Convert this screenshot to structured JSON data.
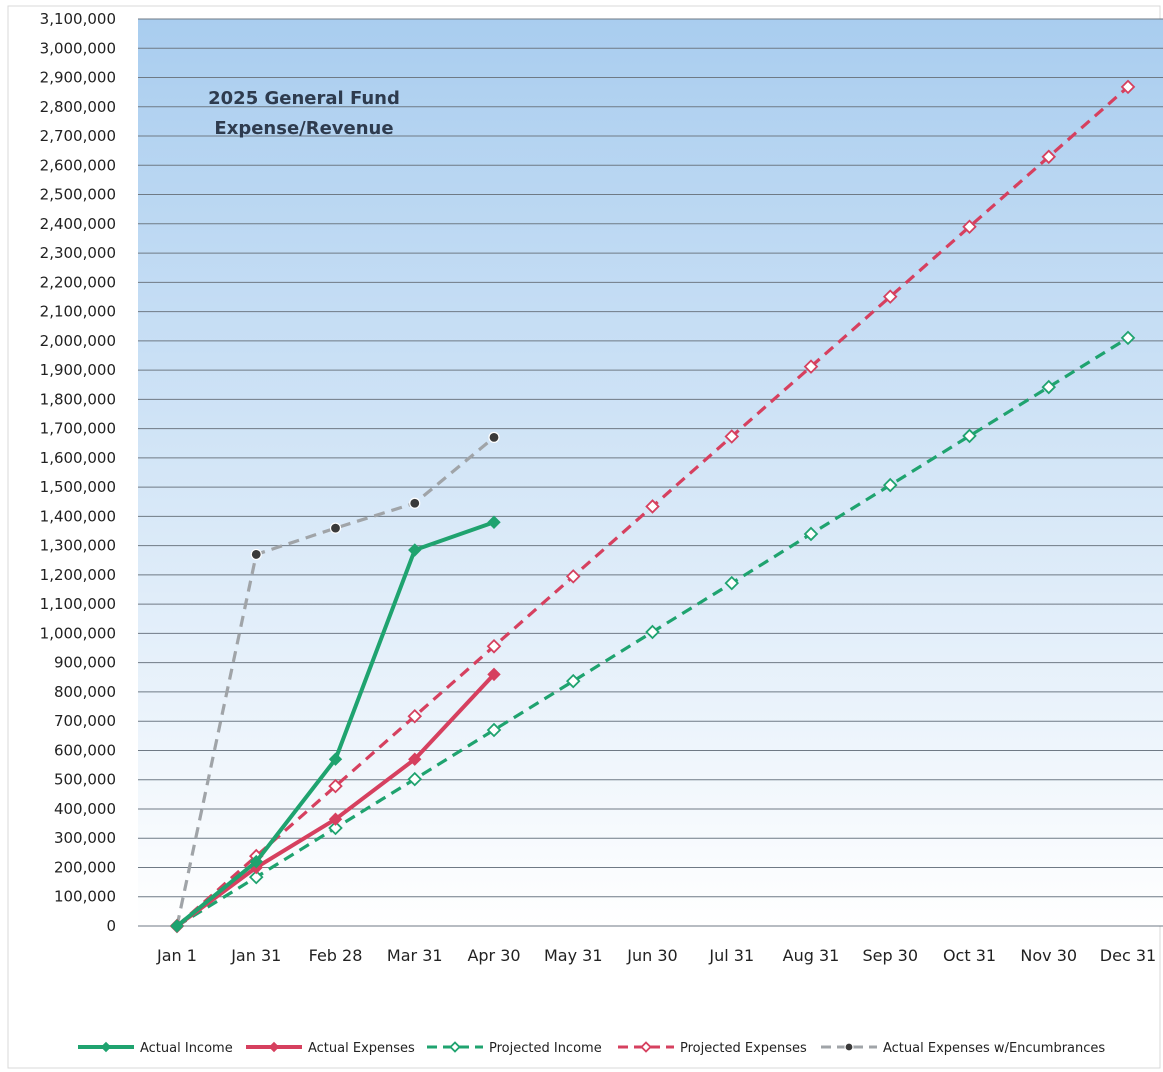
{
  "chart_data": {
    "type": "line",
    "title_lines": [
      "2025 General Fund",
      "Expense/Revenue"
    ],
    "categories": [
      "Jan 1",
      "Jan 31",
      "Feb 28",
      "Mar 31",
      "Apr 30",
      "May 31",
      "Jun 30",
      "Jul 31",
      "Aug 31",
      "Sep 30",
      "Oct 31",
      "Nov 30",
      "Dec 31"
    ],
    "ylim": [
      0,
      3100000
    ],
    "ytick_step": 100000,
    "ytick_labels": [
      "0",
      "100,000",
      "200,000",
      "300,000",
      "400,000",
      "500,000",
      "600,000",
      "700,000",
      "800,000",
      "900,000",
      "1,000,000",
      "1,100,000",
      "1,200,000",
      "1,300,000",
      "1,400,000",
      "1,500,000",
      "1,600,000",
      "1,700,000",
      "1,800,000",
      "1,900,000",
      "2,000,000",
      "2,100,000",
      "2,200,000",
      "2,300,000",
      "2,400,000",
      "2,500,000",
      "2,600,000",
      "2,700,000",
      "2,800,000",
      "2,900,000",
      "3,000,000",
      "3,100,000"
    ],
    "grid": true,
    "legend_position": "bottom",
    "series": [
      {
        "name": "Actual Income",
        "color": "#1fa36f",
        "style": "solid",
        "marker": "diamond-filled",
        "values": [
          0,
          220000,
          570000,
          1285000,
          1380000,
          null,
          null,
          null,
          null,
          null,
          null,
          null,
          null
        ]
      },
      {
        "name": "Actual Expenses",
        "color": "#d6405f",
        "style": "solid",
        "marker": "diamond-filled",
        "values": [
          0,
          200000,
          365000,
          570000,
          860000,
          null,
          null,
          null,
          null,
          null,
          null,
          null,
          null
        ]
      },
      {
        "name": "Projected Income",
        "color": "#1fa36f",
        "style": "dashed",
        "marker": "diamond-open",
        "values": [
          0,
          167000,
          335000,
          502000,
          670000,
          837000,
          1005000,
          1172000,
          1340000,
          1507000,
          1675000,
          1842000,
          2010000
        ]
      },
      {
        "name": "Projected Expenses",
        "color": "#d6405f",
        "style": "dashed",
        "marker": "diamond-open",
        "values": [
          0,
          239000,
          478000,
          717000,
          956000,
          1195000,
          1434000,
          1673000,
          1912000,
          2151000,
          2390000,
          2629000,
          2868000
        ]
      },
      {
        "name": "Actual Expenses w/Encumbrances",
        "color": "#a0a4a8",
        "style": "dashed",
        "marker": "circle-dark",
        "values": [
          0,
          1270000,
          1360000,
          1445000,
          1670000,
          null,
          null,
          null,
          null,
          null,
          null,
          null,
          null
        ]
      }
    ]
  }
}
